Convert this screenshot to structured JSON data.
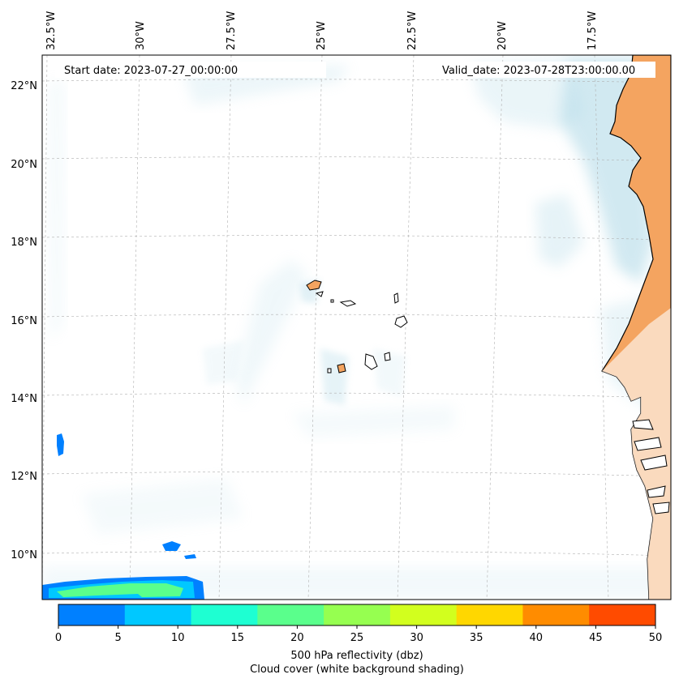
{
  "header": {
    "start_label": "Start date: 2023-07-27_00:00:00",
    "valid_label": "Valid_date: 2023-07-28T23:00:00.00"
  },
  "longitudes": [
    "32.5°W",
    "30°W",
    "27.5°W",
    "25°W",
    "22.5°W",
    "20°W",
    "17.5°W"
  ],
  "latitudes": [
    "22°N",
    "20°N",
    "18°N",
    "16°N",
    "14°N",
    "12°N",
    "10°N"
  ],
  "colorbar": {
    "ticks": [
      "0",
      "5",
      "10",
      "15",
      "20",
      "25",
      "30",
      "35",
      "40",
      "45",
      "50"
    ],
    "colors": [
      "#0080ff",
      "#00c8ff",
      "#1effd2",
      "#5aff8c",
      "#96ff50",
      "#d2ff1e",
      "#ffd700",
      "#ff8c00",
      "#ff4b00"
    ],
    "label_line1": "500 hPa reflectivity (dbz)",
    "label_line2": "Cloud cover (white background shading)"
  },
  "colors": {
    "land": "#f4a460",
    "cloud": "#add8e6",
    "grid": "#b0b0b0"
  }
}
